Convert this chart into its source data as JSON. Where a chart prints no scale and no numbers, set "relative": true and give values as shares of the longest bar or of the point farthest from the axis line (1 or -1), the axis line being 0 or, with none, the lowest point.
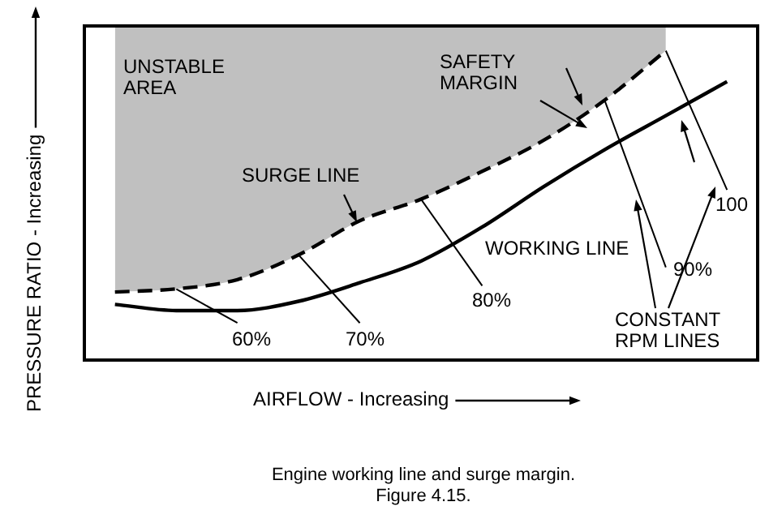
{
  "chart_data": {
    "type": "line",
    "relative": true,
    "xlabel": "AIRFLOW - Increasing",
    "ylabel": "PRESSURE RATIO - Increasing",
    "categories": [
      null,
      null,
      null,
      null,
      null,
      null,
      null,
      null,
      null,
      null,
      null
    ],
    "series": [
      {
        "name": "SURGE LINE",
        "type": "area",
        "color": "#000000",
        "line_style": "dashed",
        "values": [
          0.22,
          0.23,
          0.26,
          0.34,
          0.45,
          0.52,
          0.61,
          0.71,
          0.84,
          1,
          null
        ]
      },
      {
        "name": "WORKING LINE",
        "color": "#000000",
        "line_style": "solid",
        "values": [
          0.18,
          0.16,
          0.16,
          0.19,
          0.25,
          0.32,
          0.43,
          0.56,
          0.68,
          0.79,
          0.9
        ]
      },
      {
        "name": "60%",
        "color": "#000000",
        "line_style": "solid",
        "values": [
          null,
          0.23,
          0.12,
          null,
          null,
          null,
          null,
          null,
          null,
          null,
          null
        ]
      },
      {
        "name": "70%",
        "color": "#000000",
        "line_style": "solid",
        "values": [
          null,
          null,
          null,
          0.34,
          0.12,
          null,
          null,
          null,
          null,
          null,
          null
        ]
      },
      {
        "name": "80%",
        "color": "#000000",
        "line_style": "solid",
        "values": [
          null,
          null,
          null,
          null,
          null,
          0.52,
          0.24,
          null,
          null,
          null,
          null
        ]
      },
      {
        "name": "90%",
        "color": "#000000",
        "line_style": "solid",
        "values": [
          null,
          null,
          null,
          null,
          null,
          null,
          null,
          null,
          0.84,
          0.3,
          null
        ]
      },
      {
        "name": "100",
        "color": "#000000",
        "line_style": "solid",
        "values": [
          null,
          null,
          null,
          null,
          null,
          null,
          null,
          null,
          null,
          1,
          0.55
        ]
      }
    ],
    "annotations": [
      "UNSTABLE AREA",
      "SAFETY MARGIN",
      "CONSTANT RPM LINES",
      "Engine working line and surge margin.",
      "Figure 4.15."
    ],
    "legend": false,
    "marker": "none",
    "tick_labels": false
  }
}
